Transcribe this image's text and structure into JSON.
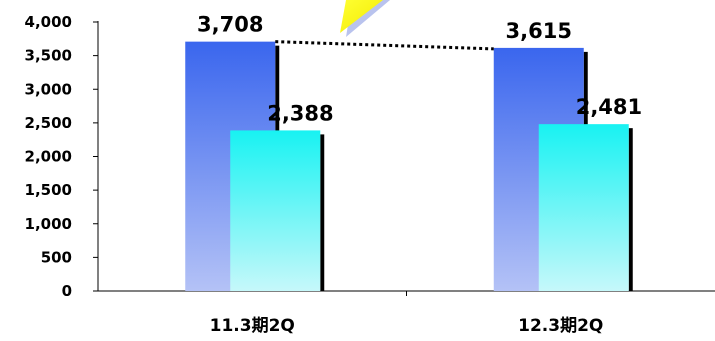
{
  "chart_data": {
    "type": "bar",
    "categories": [
      "11.3期2Q",
      "12.3期2Q"
    ],
    "series": [
      {
        "values": [
          3708,
          3615
        ],
        "color": "#3a66ee",
        "labels": [
          "3,708",
          "3,615"
        ]
      },
      {
        "values": [
          2388,
          2481
        ],
        "color": "#18f2f2",
        "labels": [
          "2,388",
          "2,481"
        ]
      }
    ],
    "ylim": [
      0,
      4000
    ],
    "y_ticks": [
      0,
      500,
      1000,
      1500,
      2000,
      2500,
      3000,
      3500,
      4000
    ],
    "y_tick_labels": [
      "0",
      "500",
      "1,000",
      "1,500",
      "2,000",
      "2,500",
      "3,000",
      "3,500",
      "4,000"
    ],
    "grid": false,
    "connector": "dotted line between the tops of the first series bars",
    "decoration": "yellow callout shape partially visible at top"
  }
}
